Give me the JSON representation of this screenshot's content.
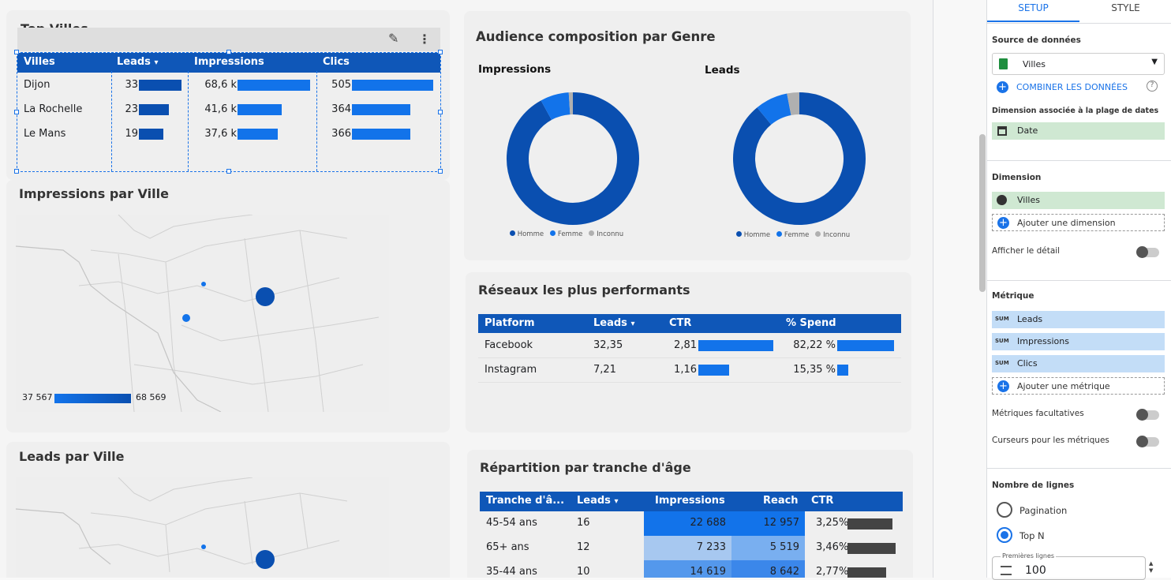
{
  "top_villes": {
    "title": "Top Villes",
    "headers": [
      "Villes",
      "Leads",
      "Impressions",
      "Clics"
    ],
    "sort_icon": "▾",
    "rows": [
      {
        "ville": "Dijon",
        "leads": "33",
        "impressions": "68,6 k",
        "clics": "505"
      },
      {
        "ville": "La Rochelle",
        "leads": "23",
        "impressions": "41,6 k",
        "clics": "364"
      },
      {
        "ville": "Le Mans",
        "leads": "19",
        "impressions": "37,6 k",
        "clics": "366"
      }
    ],
    "bar_fractions": {
      "leads": [
        1.0,
        0.7,
        0.58
      ],
      "impressions": [
        1.0,
        0.61,
        0.55
      ],
      "clics": [
        1.0,
        0.72,
        0.72
      ]
    }
  },
  "impressions_map": {
    "title": "Impressions par Ville",
    "legend_min": "37 567",
    "legend_max": "68 569"
  },
  "leads_map": {
    "title": "Leads par Ville"
  },
  "audience": {
    "title": "Audience composition par Genre",
    "charts": [
      {
        "title": "Impressions",
        "slices": [
          {
            "label": "Homme",
            "value": 92,
            "color": "#0a4fb0"
          },
          {
            "label": "Femme",
            "value": 7,
            "color": "#1273ea"
          },
          {
            "label": "Inconnu",
            "value": 1,
            "color": "#b0b0b0"
          }
        ]
      },
      {
        "title": "Leads",
        "slices": [
          {
            "label": "Homme",
            "value": 89,
            "color": "#0a4fb0"
          },
          {
            "label": "Femme",
            "value": 8,
            "color": "#1273ea"
          },
          {
            "label": "Inconnu",
            "value": 3,
            "color": "#b0b0b0"
          }
        ]
      }
    ],
    "legend": [
      "Homme",
      "Femme",
      "Inconnu"
    ]
  },
  "reseaux": {
    "title": "Réseaux les plus performants",
    "headers": [
      "Platform",
      "Leads",
      "CTR",
      "% Spend"
    ],
    "rows": [
      {
        "platform": "Facebook",
        "leads": "32,35",
        "ctr": "2,81",
        "spend": "82,22 %"
      },
      {
        "platform": "Instagram",
        "leads": "7,21",
        "ctr": "1,16",
        "spend": "15,35 %"
      }
    ],
    "ctr_fractions": [
      1.0,
      0.41
    ],
    "spend_fractions": [
      1.0,
      0.19
    ]
  },
  "age": {
    "title": "Répartition par tranche d'âge",
    "headers": [
      "Tranche d'â...",
      "Leads",
      "Impressions",
      "Reach",
      "CTR"
    ],
    "rows": [
      {
        "tranche": "45-54 ans",
        "leads": "16",
        "impressions": "22 688",
        "reach": "12 957",
        "ctr": "3,25%"
      },
      {
        "tranche": "65+ ans",
        "leads": "12",
        "impressions": "7 233",
        "reach": "5 519",
        "ctr": "3,46%"
      },
      {
        "tranche": "35-44 ans",
        "leads": "10",
        "impressions": "14 619",
        "reach": "8 642",
        "ctr": "2,77%"
      }
    ],
    "ctr_fractions": [
      0.94,
      1.0,
      0.8
    ],
    "impressions_colors": [
      "#1273ea",
      "#a7c8f0",
      "#5498ec"
    ],
    "reach_colors": [
      "#1273ea",
      "#79aff0",
      "#3b87ea"
    ]
  },
  "panel": {
    "tabs": [
      "SETUP",
      "STYLE"
    ],
    "source_label": "Source de données",
    "source_value": "Villes",
    "combine": "COMBINER LES DONNÉES",
    "date_label": "Dimension associée à la plage de dates",
    "date_value": "Date",
    "dimension_label": "Dimension",
    "dimension_value": "Villes",
    "add_dimension": "Ajouter une dimension",
    "drill": "Afficher le détail",
    "metric_label": "Métrique",
    "sum_tag": "SUM",
    "metrics": [
      "Leads",
      "Impressions",
      "Clics"
    ],
    "add_metric": "Ajouter une métrique",
    "optional": "Métriques facultatives",
    "sliders": "Curseurs pour les métriques",
    "rows_label": "Nombre de lignes",
    "pagination": "Pagination",
    "topn": "Top N",
    "first_rows_label": "Premières lignes",
    "first_rows_value": "100"
  },
  "colors": {
    "accent": "#1a73e8",
    "header": "#0f57b8",
    "dark_bar": "#0a4fb0",
    "light_bar": "#1273ea"
  }
}
